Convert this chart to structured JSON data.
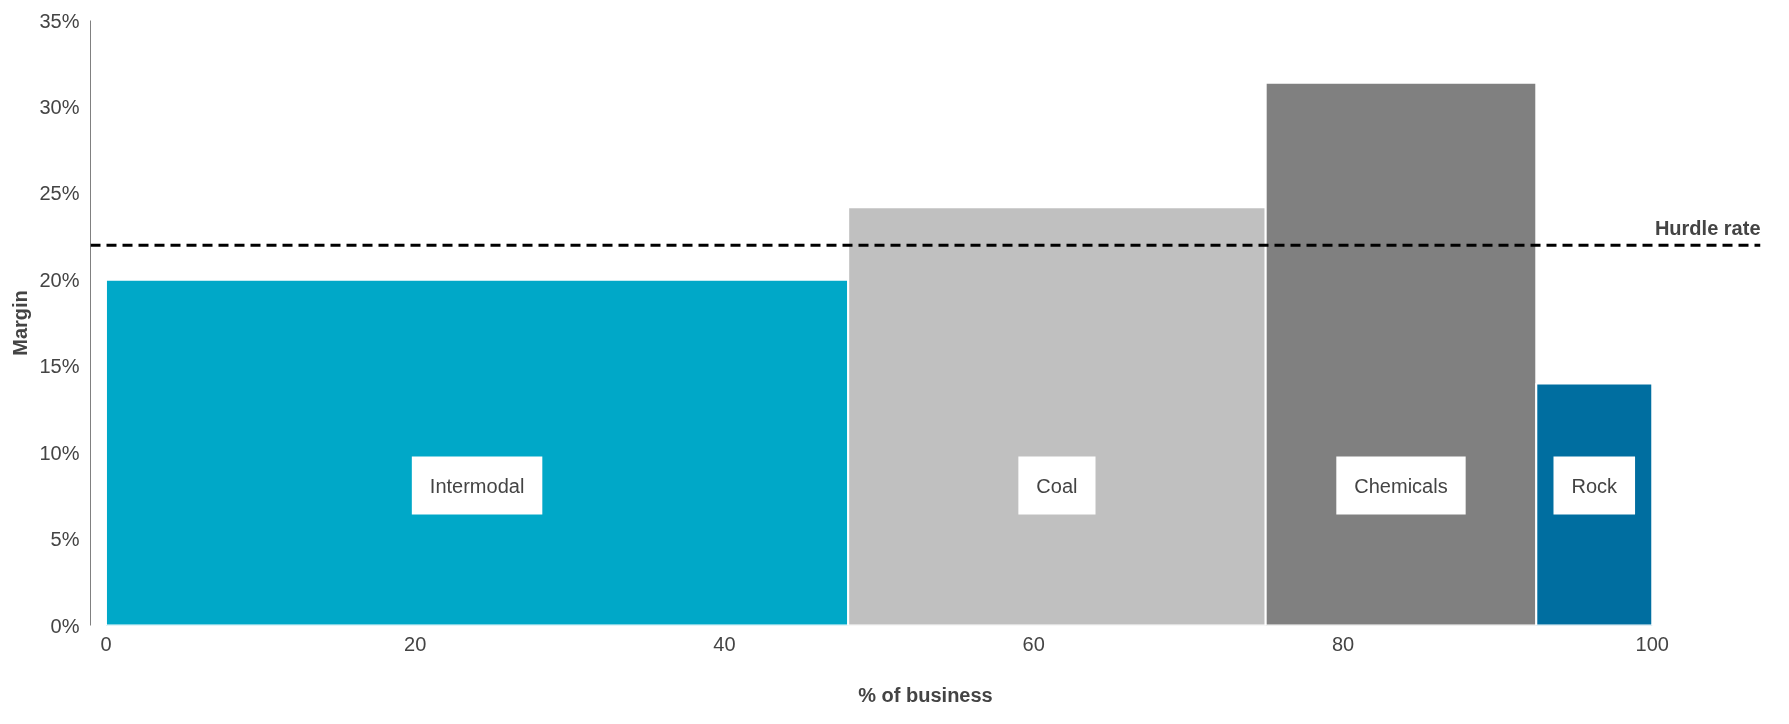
{
  "chart_data": {
    "type": "histogram",
    "xlabel": "% of business",
    "ylabel": "Margin",
    "bins": [
      0,
      48,
      75,
      92.5,
      100
    ],
    "values": [
      20,
      24.2,
      31.4,
      14
    ],
    "colors": [
      "#00a8c8",
      "#c0c0c0",
      "#808080",
      "#006ea0"
    ],
    "xlim": [
      -1,
      107
    ],
    "ylim": [
      0,
      35
    ],
    "xticks": [
      0,
      20,
      40,
      60,
      80,
      100
    ],
    "yticks": [
      {
        "value": 0,
        "label": "0%"
      },
      {
        "value": 5,
        "label": "5%"
      },
      {
        "value": 10,
        "label": "10%"
      },
      {
        "value": 15,
        "label": "15%"
      },
      {
        "value": 20,
        "label": "20%"
      },
      {
        "value": 25,
        "label": "25%"
      },
      {
        "value": 30,
        "label": "30%"
      },
      {
        "value": 35,
        "label": "35%"
      }
    ],
    "ref_lines": [
      {
        "axis": "y",
        "value": 22,
        "label": "Hurdle rate",
        "color": "#000000",
        "line_style": "dashed"
      }
    ],
    "annotations": [
      "Intermodal",
      "Coal",
      "Chemicals",
      "Rock"
    ],
    "grid": false
  }
}
